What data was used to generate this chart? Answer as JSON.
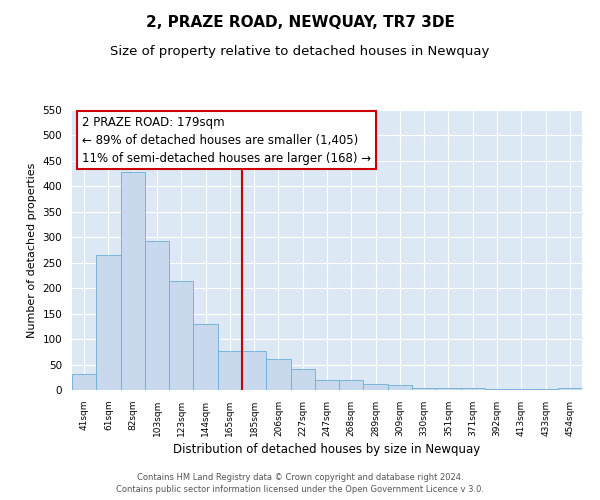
{
  "title": "2, PRAZE ROAD, NEWQUAY, TR7 3DE",
  "subtitle": "Size of property relative to detached houses in Newquay",
  "xlabel": "Distribution of detached houses by size in Newquay",
  "ylabel": "Number of detached properties",
  "bar_labels": [
    "41sqm",
    "61sqm",
    "82sqm",
    "103sqm",
    "123sqm",
    "144sqm",
    "165sqm",
    "185sqm",
    "206sqm",
    "227sqm",
    "247sqm",
    "268sqm",
    "289sqm",
    "309sqm",
    "330sqm",
    "351sqm",
    "371sqm",
    "392sqm",
    "413sqm",
    "433sqm",
    "454sqm"
  ],
  "bar_values": [
    32,
    265,
    428,
    292,
    215,
    130,
    76,
    76,
    60,
    41,
    20,
    20,
    11,
    10,
    3,
    3,
    3,
    2,
    2,
    2,
    3
  ],
  "bar_color": "#c8d9ee",
  "bar_edge_color": "#6baed6",
  "vline_index": 7,
  "vline_color": "#cc0000",
  "annotation_title": "2 PRAZE ROAD: 179sqm",
  "annotation_line1": "← 89% of detached houses are smaller (1,405)",
  "annotation_line2": "11% of semi-detached houses are larger (168) →",
  "annotation_box_color": "#ffffff",
  "annotation_box_edge_color": "#cc0000",
  "ylim": [
    0,
    550
  ],
  "yticks": [
    0,
    50,
    100,
    150,
    200,
    250,
    300,
    350,
    400,
    450,
    500,
    550
  ],
  "background_color": "#dde8f5",
  "footer_line1": "Contains HM Land Registry data © Crown copyright and database right 2024.",
  "footer_line2": "Contains public sector information licensed under the Open Government Licence v 3.0.",
  "title_fontsize": 11,
  "subtitle_fontsize": 9.5,
  "ylabel_fontsize": 8,
  "xlabel_fontsize": 8.5
}
